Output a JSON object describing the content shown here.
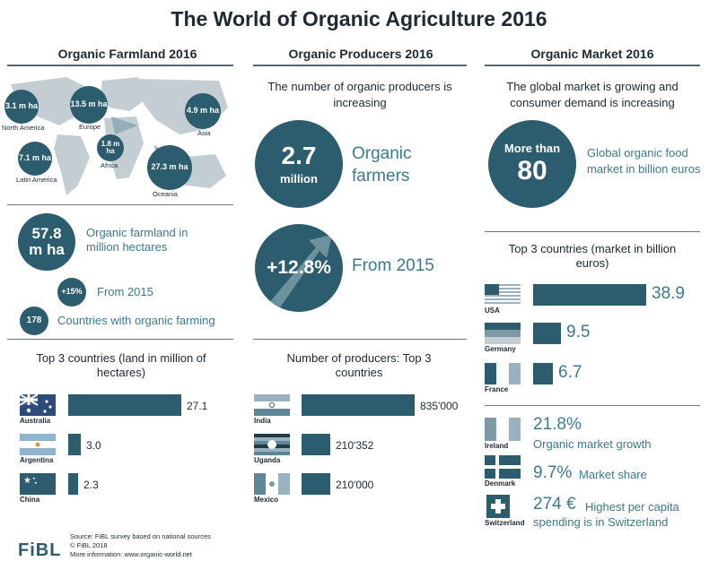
{
  "title": "The World of Organic Agriculture 2016",
  "colors": {
    "primary": "#2c5d6e",
    "accent": "#3c7b8c"
  },
  "farmland": {
    "heading": "Organic Farmland 2016",
    "regions": [
      {
        "value": "3.1 m ha",
        "name": "North America"
      },
      {
        "value": "13.5 m ha",
        "name": "Europe"
      },
      {
        "value": "4.9 m ha",
        "name": "Asia"
      },
      {
        "value": "7.1 m ha",
        "name": "Latin America"
      },
      {
        "value": "1.8 m ha",
        "name": "Africa"
      },
      {
        "value": "27.3 m ha",
        "name": "Oceania"
      }
    ],
    "total_value": "57.8 m ha",
    "total_label": "Organic farmland in million hectares",
    "growth_value": "+15%",
    "growth_label": "From 2015",
    "countries_value": "178",
    "countries_label": "Countries with organic farming",
    "top_title": "Top 3 countries (land in million of hectares)"
  },
  "producers": {
    "heading": "Organic Producers 2016",
    "subtitle": "The number of organic producers is increasing",
    "total_value": "2.7",
    "total_unit": "million",
    "total_label": "Organic farmers",
    "growth_value": "+12.8%",
    "growth_label": "From 2015",
    "top_title": "Number of producers: Top 3 countries"
  },
  "market": {
    "heading": "Organic Market 2016",
    "subtitle": "The global market is growing and consumer demand is increasing",
    "total_prefix": "More than",
    "total_value": "80",
    "total_label": "Global organic food market in billion euros",
    "top_title": "Top 3 countries (market in billion euros)",
    "facts": [
      {
        "country": "Ireland",
        "value": "21.8%",
        "label": "Organic market growth"
      },
      {
        "country": "Denmark",
        "value": "9.7%",
        "label": "Market share"
      },
      {
        "country": "Switzerland",
        "value": "274 €",
        "label": "Highest per capita spending is in Switzerland"
      }
    ]
  },
  "chart_data": [
    {
      "type": "bar",
      "title": "Top 3 countries (land in million of hectares)",
      "categories": [
        "Australia",
        "Argentina",
        "China"
      ],
      "values": [
        27.1,
        3.0,
        2.3
      ],
      "labels": [
        "27.1",
        "3.0",
        "2.3"
      ]
    },
    {
      "type": "bar",
      "title": "Number of producers: Top 3 countries",
      "categories": [
        "India",
        "Uganda",
        "Mexico"
      ],
      "values": [
        835000,
        210352,
        210000
      ],
      "labels": [
        "835'000",
        "210'352",
        "210'000"
      ]
    },
    {
      "type": "bar",
      "title": "Top 3 countries (market in billion euros)",
      "categories": [
        "USA",
        "Germany",
        "France"
      ],
      "values": [
        38.9,
        9.5,
        6.7
      ],
      "labels": [
        "38.9",
        "9.5",
        "6.7"
      ]
    }
  ],
  "footer": {
    "logo": "FiBL",
    "source": "Source: FiBL survey based on national sources",
    "copyright": "© FiBL 2018",
    "more": "More information: www.organic-world.net"
  }
}
